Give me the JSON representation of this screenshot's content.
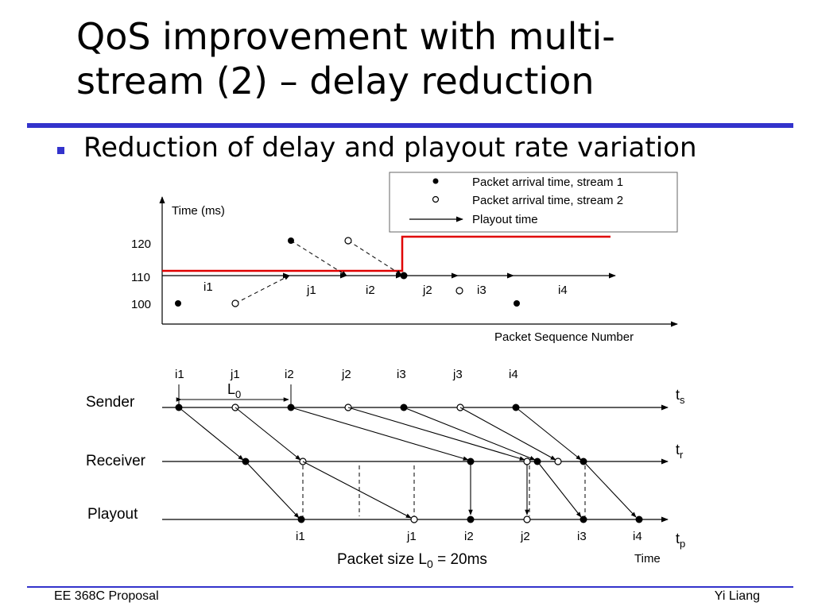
{
  "slide": {
    "title_line1": "QoS improvement with multi-",
    "title_line2": "stream (2) – delay reduction",
    "bullet": "Reduction of delay and playout rate variation",
    "footer_left": "EE 368C Proposal",
    "footer_right": "Yi Liang"
  },
  "top_diagram": {
    "y_axis_label": "Time (ms)",
    "x_axis_label": "Packet Sequence Number",
    "y_ticks": [
      "120",
      "110",
      "100"
    ],
    "legend": {
      "stream1": "Packet arrival time, stream 1",
      "stream2": "Packet arrival time, stream 2",
      "playout": "Playout time"
    },
    "segment_labels": [
      "i1",
      "j1",
      "i2",
      "j2",
      "i3",
      "i4"
    ],
    "colors": {
      "playout_line": "#e00000",
      "ink": "#000000"
    }
  },
  "bottom_diagram": {
    "packet_labels": [
      "i1",
      "j1",
      "i2",
      "j2",
      "i3",
      "j3",
      "i4"
    ],
    "spacing_label": "L",
    "spacing_sub": "0",
    "rows": {
      "sender": "Sender",
      "receiver": "Receiver",
      "playout": "Playout"
    },
    "axis_labels": {
      "ts": "t",
      "ts_sub": "s",
      "tr": "t",
      "tr_sub": "r",
      "tp": "t",
      "tp_sub": "p"
    },
    "playout_labels": [
      "i1",
      "j1",
      "i2",
      "j2",
      "i3",
      "i4"
    ],
    "time_label": "Time",
    "caption_prefix": "Packet size L",
    "caption_sub": "0",
    "caption_suffix": " = 20ms"
  }
}
